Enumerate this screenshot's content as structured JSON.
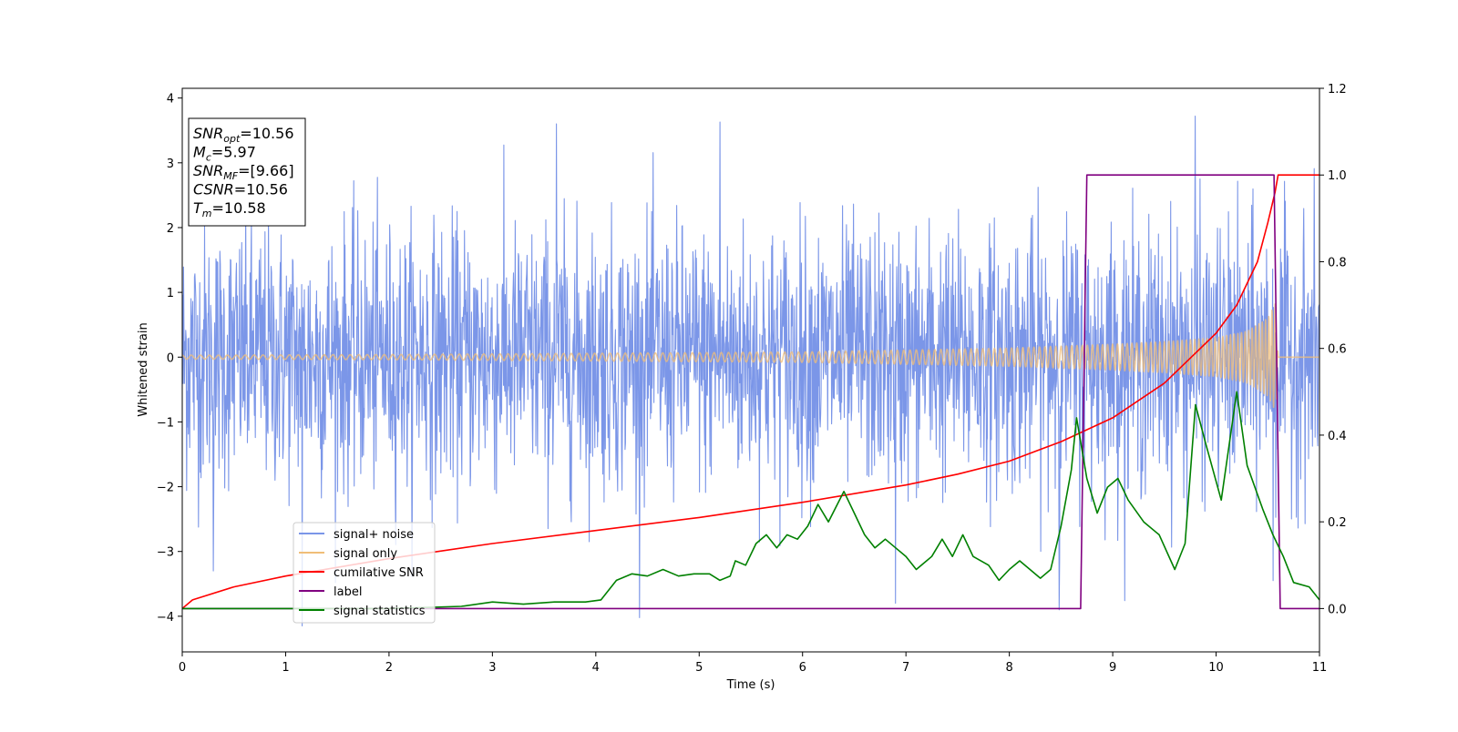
{
  "chart_data": {
    "type": "line",
    "xlabel": "Time (s)",
    "ylabel": "Whitened strain",
    "xlim": [
      0,
      11
    ],
    "ylim": [
      -4.55,
      4.15
    ],
    "y2lim": [
      -0.1,
      1.2
    ],
    "x_ticks": [
      0,
      1,
      2,
      3,
      4,
      5,
      6,
      7,
      8,
      9,
      10,
      11
    ],
    "x_tick_labels": [
      "0",
      "1",
      "2",
      "3",
      "4",
      "5",
      "6",
      "7",
      "8",
      "9",
      "10",
      "11"
    ],
    "y_ticks": [
      -4,
      -3,
      -2,
      -1,
      0,
      1,
      2,
      3,
      4
    ],
    "y_tick_labels": [
      "−4",
      "−3",
      "−2",
      "−1",
      "0",
      "1",
      "2",
      "3",
      "4"
    ],
    "y2_ticks": [
      0.0,
      0.2,
      0.4,
      0.6,
      0.8,
      1.0,
      1.2
    ],
    "y2_tick_labels": [
      "0.0",
      "0.2",
      "0.4",
      "0.6",
      "0.8",
      "1.0",
      "1.2"
    ],
    "legend_placement": "lower-left",
    "info_box": {
      "placement": "upper-left",
      "lines": [
        {
          "base": "SNR",
          "sub": "opt",
          "rest": "=10.56"
        },
        {
          "base": "M",
          "sub": "c",
          "rest": "=5.97"
        },
        {
          "base": "SNR",
          "sub": "MF",
          "rest": "=[9.66]"
        },
        {
          "base": "CSNR",
          "sub": "",
          "rest": "=10.56"
        },
        {
          "base": "T",
          "sub": "m",
          "rest": "=10.58"
        }
      ]
    },
    "series": [
      {
        "name": "signal+ noise",
        "color": "#7b96e8",
        "axis": "left",
        "kind": "noise",
        "std": 1.0,
        "peak_max": 3.72,
        "peak_min": -4.15,
        "peak_points": [
          [
            1.16,
            -4.15
          ],
          [
            0.3,
            -3.3
          ],
          [
            3.62,
            3.6
          ],
          [
            5.2,
            3.63
          ],
          [
            9.8,
            3.72
          ],
          [
            6.9,
            -3.8
          ],
          [
            8.48,
            -3.9
          ],
          [
            10.55,
            -3.45
          ]
        ]
      },
      {
        "name": "signal only",
        "color": "#f0be78",
        "axis": "left",
        "kind": "chirp",
        "envelope": [
          [
            0,
            0.03
          ],
          [
            2,
            0.04
          ],
          [
            4,
            0.06
          ],
          [
            6,
            0.08
          ],
          [
            8,
            0.14
          ],
          [
            9,
            0.2
          ],
          [
            9.5,
            0.24
          ],
          [
            10,
            0.3
          ],
          [
            10.3,
            0.4
          ],
          [
            10.5,
            0.6
          ],
          [
            10.58,
            0.85
          ],
          [
            10.6,
            0.0
          ],
          [
            11,
            0.0
          ]
        ]
      },
      {
        "name": "cumilative SNR",
        "color": "#ff0000",
        "axis": "right",
        "kind": "line",
        "points": [
          [
            0,
            0.0
          ],
          [
            0.1,
            0.02
          ],
          [
            0.5,
            0.05
          ],
          [
            1,
            0.075
          ],
          [
            2,
            0.115
          ],
          [
            3,
            0.15
          ],
          [
            4,
            0.18
          ],
          [
            5,
            0.21
          ],
          [
            6,
            0.245
          ],
          [
            7,
            0.285
          ],
          [
            7.5,
            0.31
          ],
          [
            8,
            0.34
          ],
          [
            8.5,
            0.385
          ],
          [
            9,
            0.44
          ],
          [
            9.5,
            0.52
          ],
          [
            10,
            0.635
          ],
          [
            10.2,
            0.7
          ],
          [
            10.4,
            0.8
          ],
          [
            10.5,
            0.89
          ],
          [
            10.57,
            0.96
          ],
          [
            10.6,
            1.0
          ],
          [
            11,
            1.0
          ]
        ]
      },
      {
        "name": "label",
        "color": "#800080",
        "axis": "right",
        "kind": "line",
        "points": [
          [
            0,
            0.0
          ],
          [
            8.69,
            0.0
          ],
          [
            8.75,
            1.0
          ],
          [
            10.56,
            1.0
          ],
          [
            10.62,
            0.0
          ],
          [
            11,
            0.0
          ]
        ]
      },
      {
        "name": "signal statistics",
        "color": "#008000",
        "axis": "right",
        "kind": "line",
        "points": [
          [
            0,
            0.0
          ],
          [
            1,
            0.0
          ],
          [
            2,
            0.0
          ],
          [
            2.7,
            0.005
          ],
          [
            3,
            0.015
          ],
          [
            3.3,
            0.01
          ],
          [
            3.6,
            0.015
          ],
          [
            3.9,
            0.015
          ],
          [
            4.05,
            0.02
          ],
          [
            4.2,
            0.065
          ],
          [
            4.35,
            0.08
          ],
          [
            4.5,
            0.075
          ],
          [
            4.65,
            0.09
          ],
          [
            4.8,
            0.075
          ],
          [
            4.95,
            0.08
          ],
          [
            5.1,
            0.08
          ],
          [
            5.2,
            0.065
          ],
          [
            5.3,
            0.075
          ],
          [
            5.35,
            0.11
          ],
          [
            5.45,
            0.1
          ],
          [
            5.55,
            0.15
          ],
          [
            5.65,
            0.17
          ],
          [
            5.75,
            0.14
          ],
          [
            5.85,
            0.17
          ],
          [
            5.95,
            0.16
          ],
          [
            6.05,
            0.19
          ],
          [
            6.15,
            0.24
          ],
          [
            6.25,
            0.2
          ],
          [
            6.4,
            0.27
          ],
          [
            6.5,
            0.22
          ],
          [
            6.6,
            0.17
          ],
          [
            6.7,
            0.14
          ],
          [
            6.8,
            0.16
          ],
          [
            6.9,
            0.14
          ],
          [
            7.0,
            0.12
          ],
          [
            7.1,
            0.09
          ],
          [
            7.25,
            0.12
          ],
          [
            7.35,
            0.16
          ],
          [
            7.45,
            0.12
          ],
          [
            7.55,
            0.17
          ],
          [
            7.65,
            0.12
          ],
          [
            7.8,
            0.1
          ],
          [
            7.9,
            0.065
          ],
          [
            8.0,
            0.09
          ],
          [
            8.1,
            0.11
          ],
          [
            8.2,
            0.09
          ],
          [
            8.3,
            0.07
          ],
          [
            8.4,
            0.09
          ],
          [
            8.5,
            0.19
          ],
          [
            8.6,
            0.32
          ],
          [
            8.65,
            0.44
          ],
          [
            8.75,
            0.3
          ],
          [
            8.85,
            0.22
          ],
          [
            8.95,
            0.28
          ],
          [
            9.05,
            0.3
          ],
          [
            9.15,
            0.25
          ],
          [
            9.3,
            0.2
          ],
          [
            9.45,
            0.17
          ],
          [
            9.6,
            0.09
          ],
          [
            9.7,
            0.15
          ],
          [
            9.8,
            0.47
          ],
          [
            9.9,
            0.38
          ],
          [
            10.05,
            0.25
          ],
          [
            10.2,
            0.5
          ],
          [
            10.3,
            0.33
          ],
          [
            10.45,
            0.23
          ],
          [
            10.55,
            0.17
          ],
          [
            10.65,
            0.12
          ],
          [
            10.75,
            0.06
          ],
          [
            10.9,
            0.05
          ],
          [
            11,
            0.02
          ]
        ]
      }
    ]
  }
}
